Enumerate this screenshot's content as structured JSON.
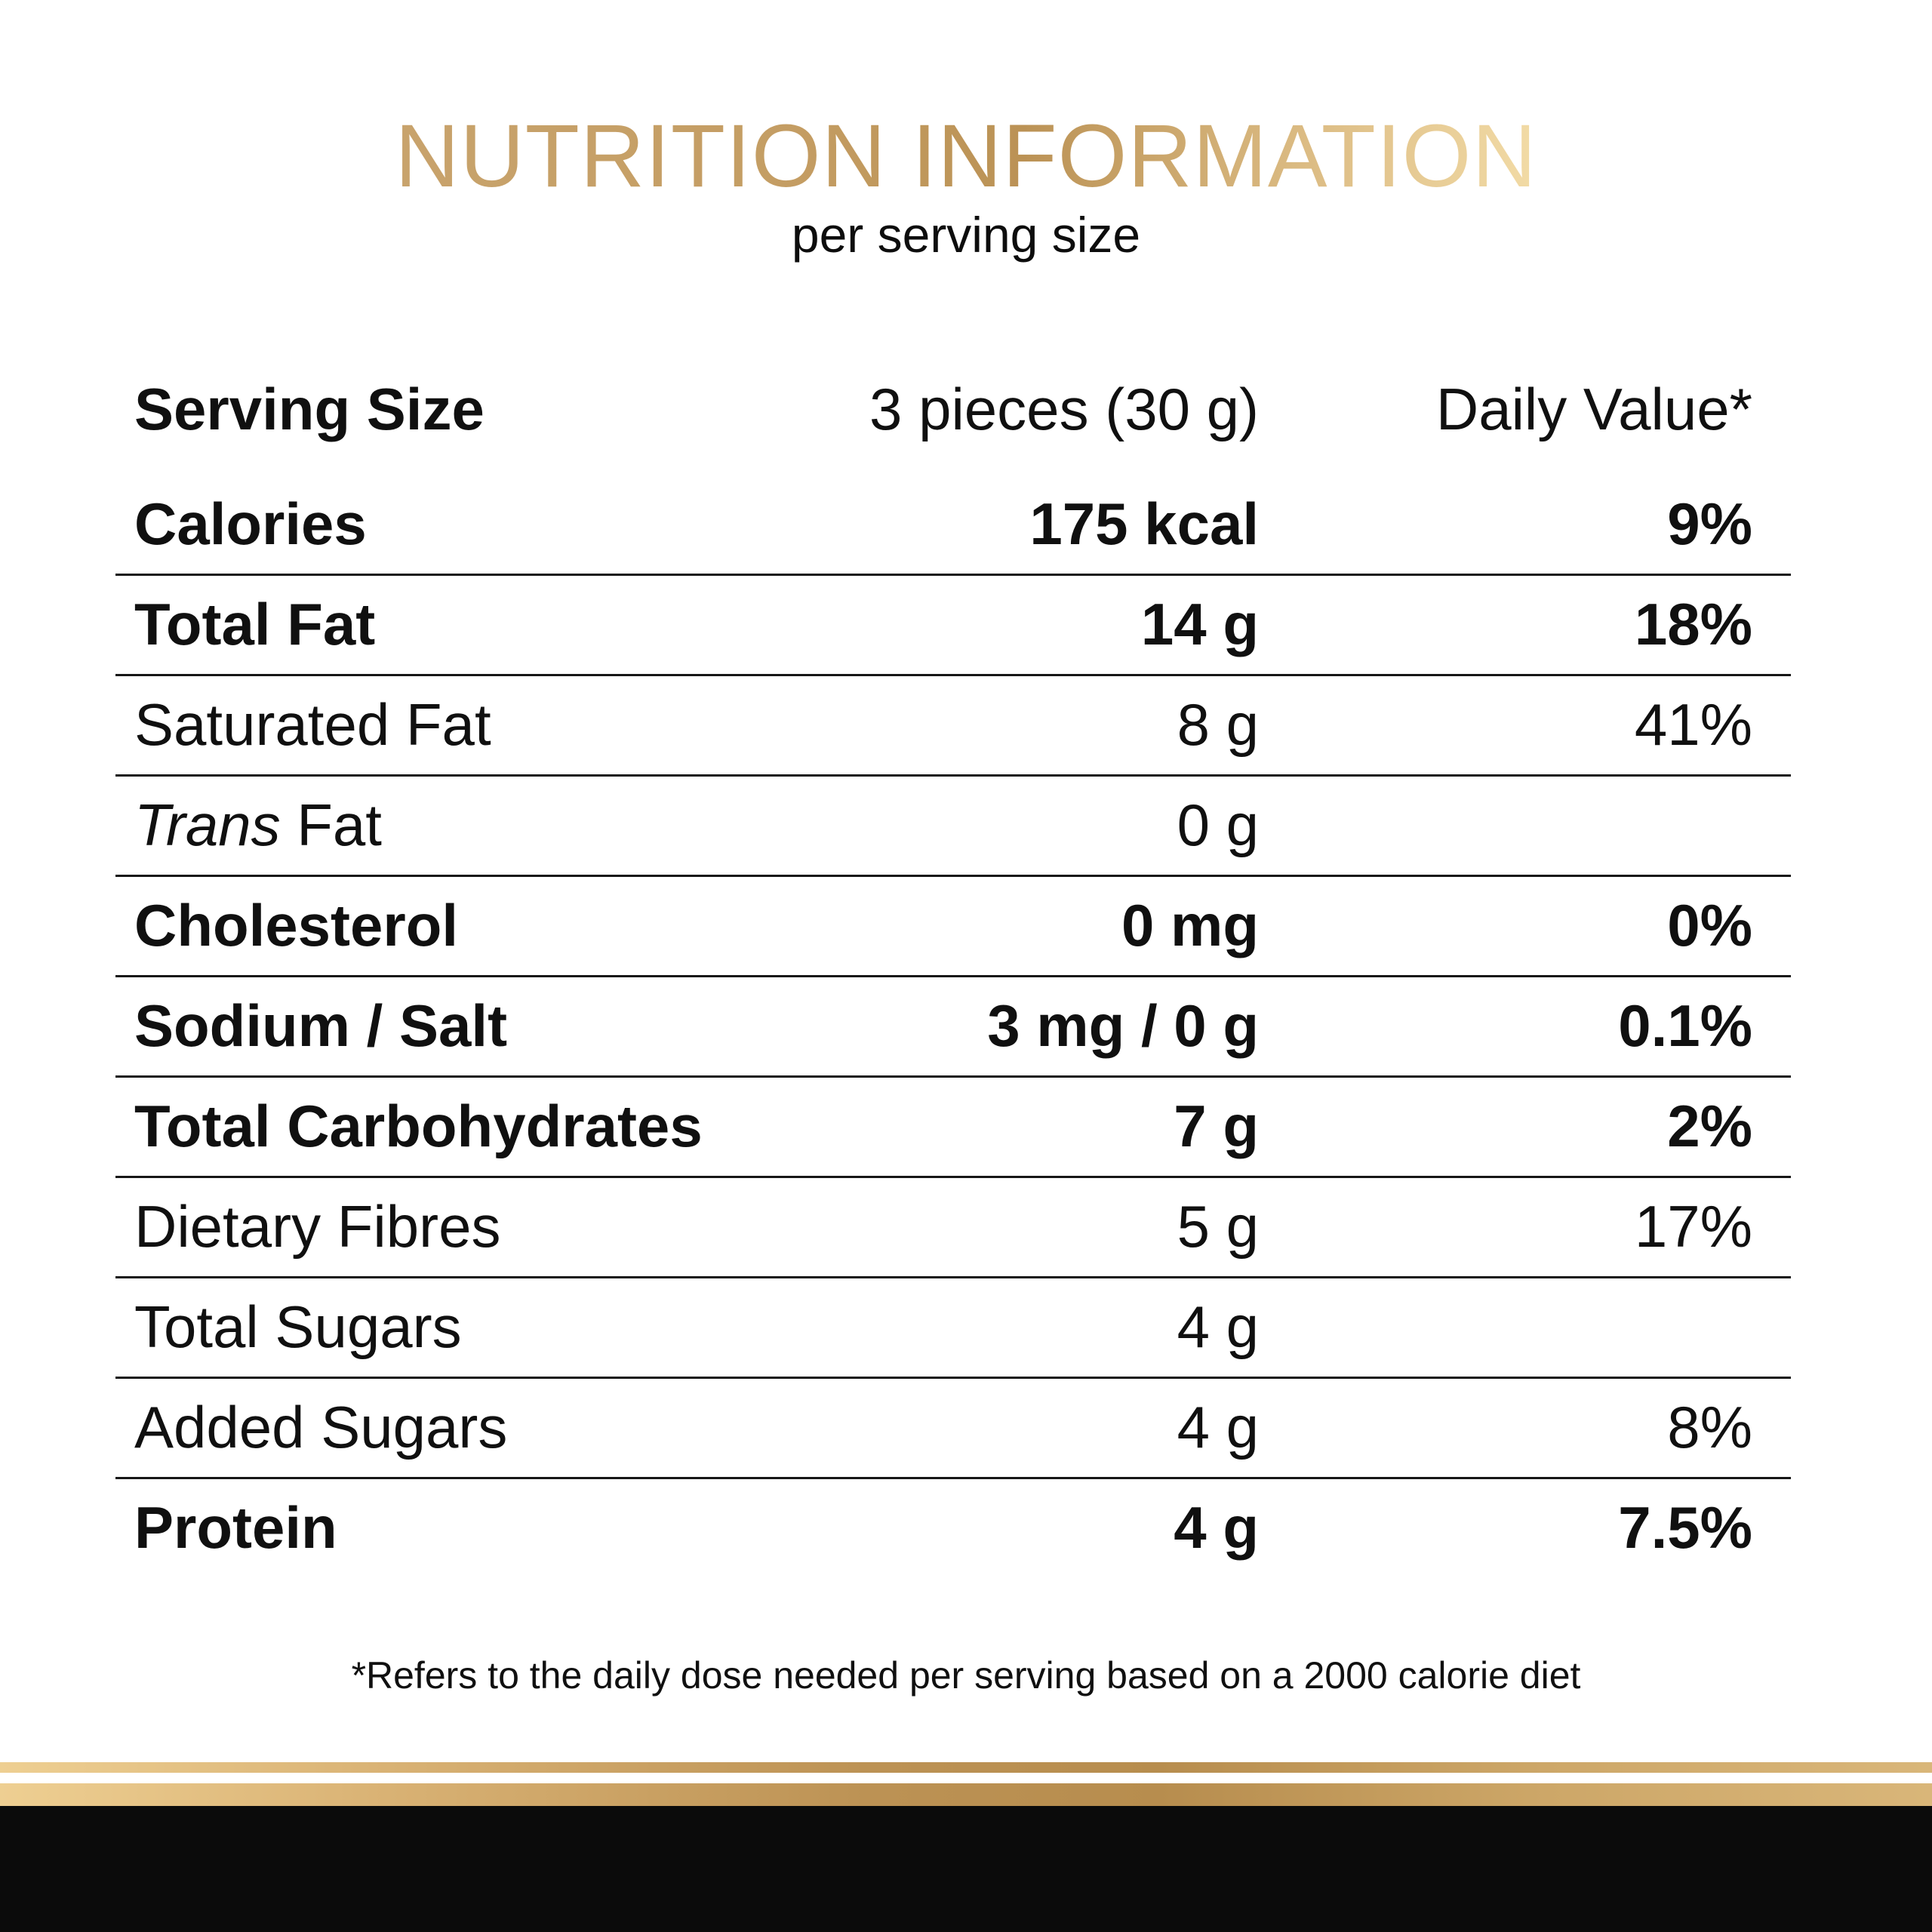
{
  "header": {
    "title": "NUTRITION INFORMATION",
    "subtitle": "per serving size"
  },
  "table": {
    "serving_row": {
      "label": "Serving Size",
      "value": "3 pieces (30 g)",
      "daily_value": "Daily Value*"
    },
    "rows": [
      {
        "label": "Calories",
        "value": "175 kcal",
        "daily_value": "9%",
        "bold": true
      },
      {
        "label": "Total Fat",
        "value": "14 g",
        "daily_value": "18%",
        "bold": true
      },
      {
        "label": "Saturated Fat",
        "value": "8 g",
        "daily_value": "41%",
        "bold": false
      },
      {
        "label": "Fat",
        "label_italic_prefix": "Trans",
        "value": "0 g",
        "daily_value": "",
        "bold": false
      },
      {
        "label": "Cholesterol",
        "value": "0 mg",
        "daily_value": "0%",
        "bold": true
      },
      {
        "label": "Sodium / Salt",
        "value": "3 mg / 0 g",
        "daily_value": "0.1%",
        "bold": true
      },
      {
        "label": "Total Carbohydrates",
        "value": "7 g",
        "daily_value": "2%",
        "bold": true
      },
      {
        "label": "Dietary Fibres",
        "value": "5 g",
        "daily_value": "17%",
        "bold": false
      },
      {
        "label": "Total Sugars",
        "value": "4 g",
        "daily_value": "",
        "bold": false
      },
      {
        "label": "Added Sugars",
        "value": "4 g",
        "daily_value": "8%",
        "bold": false
      },
      {
        "label": "Protein",
        "value": "4 g",
        "daily_value": "7.5%",
        "bold": true
      }
    ]
  },
  "footnote": "*Refers to the daily dose needed per serving based on a 2000 calorie diet",
  "colors": {
    "title_gold_gradient": [
      "#c8a36c",
      "#c49d63",
      "#bb9255",
      "#dcbc84",
      "#f2dba6"
    ],
    "divider_gold_gradient": [
      "#eecf92",
      "#d9b274",
      "#bc9254",
      "#b78d4e",
      "#cda768",
      "#d9b679"
    ],
    "footer_black": "#0b0b0b",
    "text_black": "#101010"
  }
}
